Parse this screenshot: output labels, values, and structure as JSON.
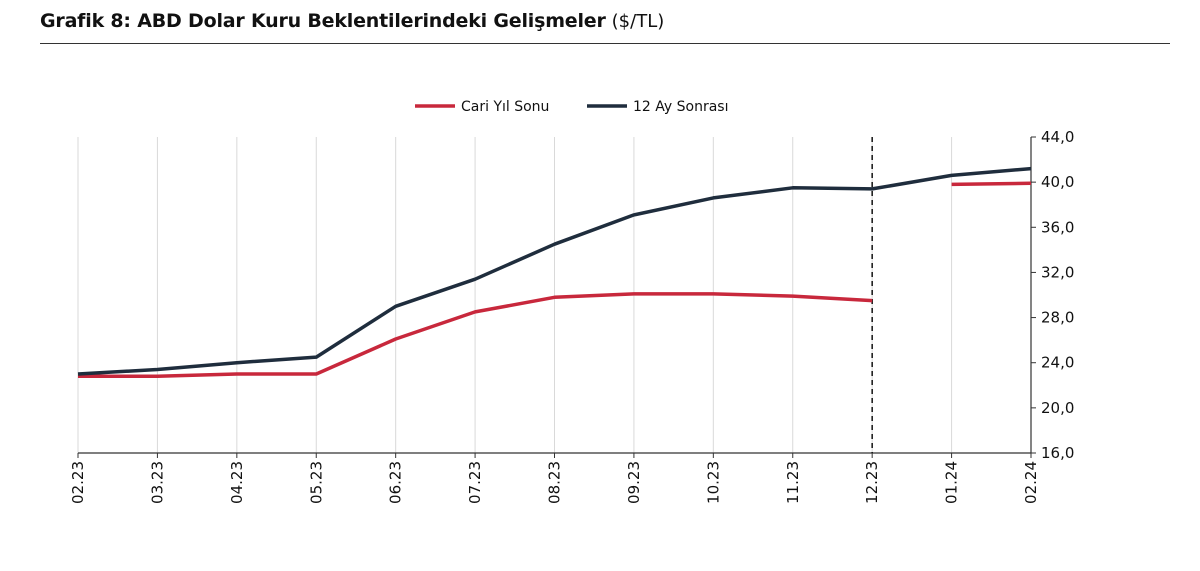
{
  "title": {
    "main": "Grafik 8: ABD Dolar Kuru Beklentilerindeki Gelişmeler",
    "unit": "($/TL)"
  },
  "chart_data": {
    "type": "line",
    "title": "Grafik 8: ABD Dolar Kuru Beklentilerindeki Gelişmeler ($/TL)",
    "categories": [
      "02.23",
      "03.23",
      "04.23",
      "05.23",
      "06.23",
      "07.23",
      "08.23",
      "09.23",
      "10.23",
      "11.23",
      "12.23",
      "01.24",
      "02.24"
    ],
    "series": [
      {
        "name": "Cari Yıl Sonu",
        "color": "#c8283c",
        "values": [
          22.8,
          22.8,
          23.0,
          23.0,
          26.1,
          28.5,
          29.8,
          30.1,
          30.1,
          29.9,
          29.5,
          null,
          null
        ],
        "segment2": {
          "from": 11,
          "to": 12,
          "values": [
            39.8,
            39.9
          ]
        }
      },
      {
        "name": "12 Ay Sonrası",
        "color": "#1f2d3d",
        "values": [
          23.0,
          23.4,
          24.0,
          24.5,
          29.0,
          31.4,
          34.5,
          37.1,
          38.6,
          39.5,
          39.4,
          40.6,
          41.2
        ]
      }
    ],
    "ylim": [
      16.0,
      44.0
    ],
    "yticks": [
      "16,0",
      "20,0",
      "24,0",
      "28,0",
      "32,0",
      "36,0",
      "40,0",
      "44,0"
    ],
    "ytick_values": [
      16,
      20,
      24,
      28,
      32,
      36,
      40,
      44
    ],
    "y_axis_side": "right",
    "grid": "vertical",
    "legend": "top-center",
    "vline_category": "12.23",
    "vline_style": "dashed"
  }
}
